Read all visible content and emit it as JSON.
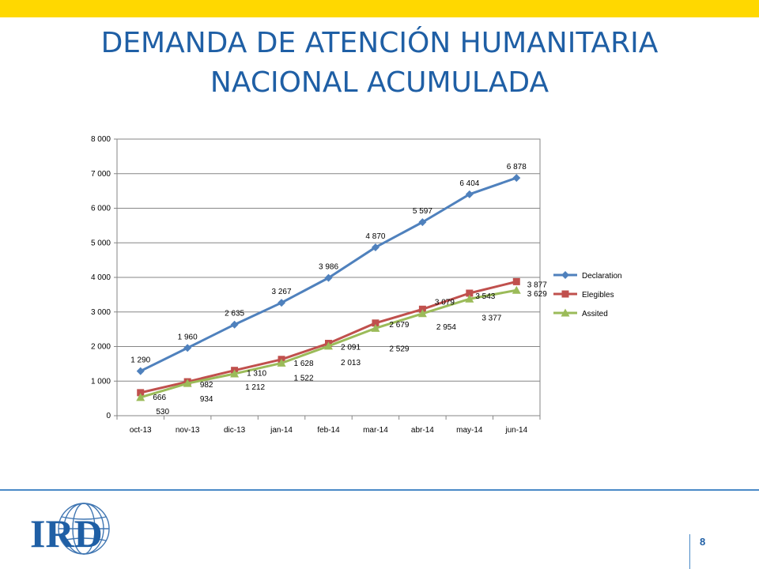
{
  "slide": {
    "title_line1": "DEMANDA DE ATENCIÓN HUMANITARIA",
    "title_line2": "NACIONAL ACUMULADA",
    "page_number": "8",
    "logo_text": "IRD",
    "accent_color": "#ffd800",
    "title_color": "#1f5fa5"
  },
  "chart_data": {
    "type": "line",
    "categories": [
      "oct-13",
      "nov-13",
      "dic-13",
      "jan-14",
      "feb-14",
      "mar-14",
      "abr-14",
      "may-14",
      "jun-14"
    ],
    "ylim": [
      0,
      8000
    ],
    "yticks": [
      0,
      1000,
      2000,
      3000,
      4000,
      5000,
      6000,
      7000,
      8000
    ],
    "ytick_labels": [
      "0",
      "1 000",
      "2 000",
      "3 000",
      "4 000",
      "5 000",
      "6 000",
      "7 000",
      "8 000"
    ],
    "grid": true,
    "legend_position": "right",
    "series": [
      {
        "name": "Declaration",
        "color": "#4f81bd",
        "marker": "diamond",
        "values": [
          1290,
          1960,
          2635,
          3267,
          3986,
          4870,
          5597,
          6404,
          6878
        ],
        "labels": [
          "1 290",
          "1 960",
          "2 635",
          "3 267",
          "3 986",
          "4 870",
          "5 597",
          "6 404",
          "6 878"
        ]
      },
      {
        "name": "Elegibles",
        "color": "#c0504d",
        "marker": "square",
        "values": [
          666,
          982,
          1310,
          1628,
          2091,
          2679,
          3079,
          3543,
          3877
        ],
        "labels": [
          "666",
          "982",
          "1 310",
          "1 628",
          "2 091",
          "2 679",
          "3 079",
          "3 543",
          "3 877"
        ]
      },
      {
        "name": "Assited",
        "color": "#9bbb59",
        "marker": "triangle",
        "values": [
          530,
          934,
          1212,
          1522,
          2013,
          2529,
          2954,
          3377,
          3629
        ],
        "labels": [
          "530",
          "934",
          "1 212",
          "1 522",
          "2 013",
          "2 529",
          "2 954",
          "3 377",
          "3 629"
        ]
      }
    ]
  }
}
